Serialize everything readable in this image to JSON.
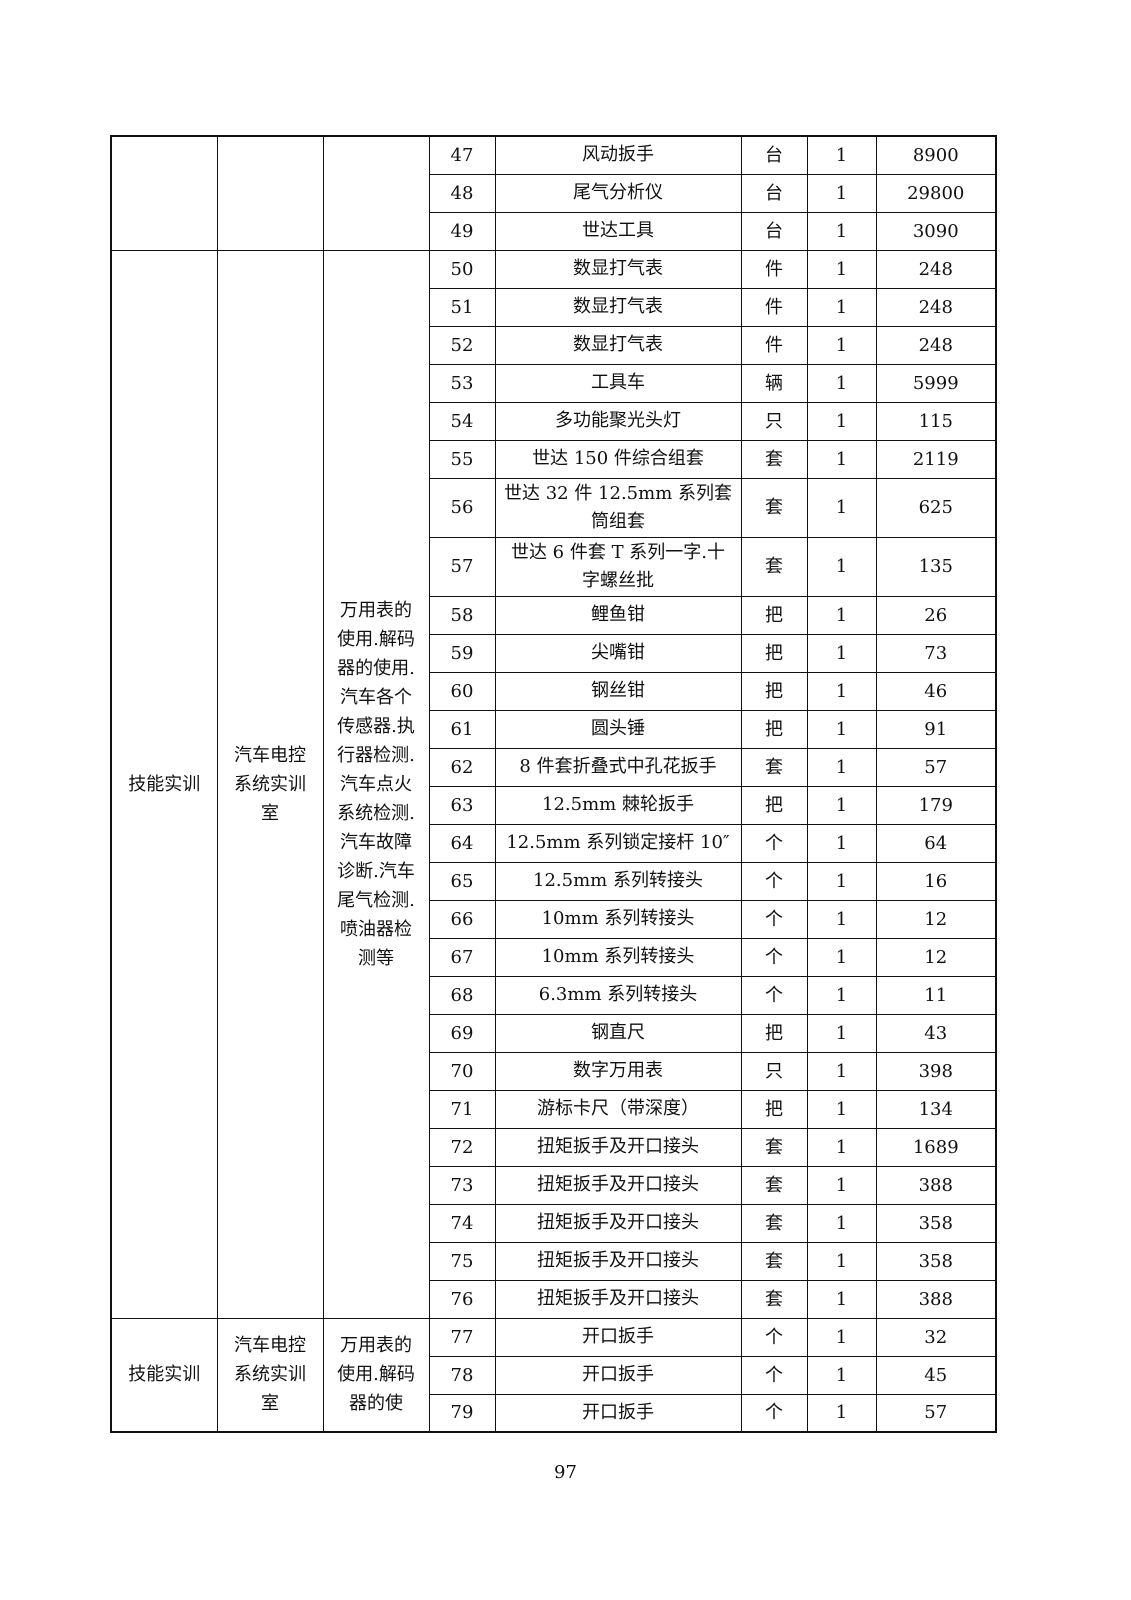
{
  "page_number": "97",
  "groups": [
    {
      "category": "",
      "room": "",
      "content": "",
      "rows": [
        {
          "no": "47",
          "name": "风动扳手",
          "unit": "台",
          "qty": "1",
          "price": "8900"
        },
        {
          "no": "48",
          "name": "尾气分析仪",
          "unit": "台",
          "qty": "1",
          "price": "29800"
        },
        {
          "no": "49",
          "name": "世达工具",
          "unit": "台",
          "qty": "1",
          "price": "3090"
        }
      ]
    },
    {
      "category": "技能实训",
      "room": "汽车电控系统实训室",
      "content": "万用表的使用.解码器的使用.汽车各个传感器.执行器检测.汽车点火系统检测.汽车故障诊断.汽车尾气检测.喷油器检测等",
      "rows": [
        {
          "no": "50",
          "name": "数显打气表",
          "unit": "件",
          "qty": "1",
          "price": "248"
        },
        {
          "no": "51",
          "name": "数显打气表",
          "unit": "件",
          "qty": "1",
          "price": "248"
        },
        {
          "no": "52",
          "name": "数显打气表",
          "unit": "件",
          "qty": "1",
          "price": "248"
        },
        {
          "no": "53",
          "name": "工具车",
          "unit": "辆",
          "qty": "1",
          "price": "5999"
        },
        {
          "no": "54",
          "name": "多功能聚光头灯",
          "unit": "只",
          "qty": "1",
          "price": "115"
        },
        {
          "no": "55",
          "name": "世达 150 件综合组套",
          "unit": "套",
          "qty": "1",
          "price": "2119"
        },
        {
          "no": "56",
          "name": "世达 32 件 12.5mm 系列套筒组套",
          "unit": "套",
          "qty": "1",
          "price": "625"
        },
        {
          "no": "57",
          "name": "世达 6 件套 T 系列一字.十字螺丝批",
          "unit": "套",
          "qty": "1",
          "price": "135"
        },
        {
          "no": "58",
          "name": "鲤鱼钳",
          "unit": "把",
          "qty": "1",
          "price": "26"
        },
        {
          "no": "59",
          "name": "尖嘴钳",
          "unit": "把",
          "qty": "1",
          "price": "73"
        },
        {
          "no": "60",
          "name": "钢丝钳",
          "unit": "把",
          "qty": "1",
          "price": "46"
        },
        {
          "no": "61",
          "name": "圆头锤",
          "unit": "把",
          "qty": "1",
          "price": "91"
        },
        {
          "no": "62",
          "name": "8 件套折叠式中孔花扳手",
          "unit": "套",
          "qty": "1",
          "price": "57"
        },
        {
          "no": "63",
          "name": "12.5mm 棘轮扳手",
          "unit": "把",
          "qty": "1",
          "price": "179"
        },
        {
          "no": "64",
          "name": "12.5mm 系列锁定接杆 10″",
          "unit": "个",
          "qty": "1",
          "price": "64"
        },
        {
          "no": "65",
          "name": "12.5mm 系列转接头",
          "unit": "个",
          "qty": "1",
          "price": "16"
        },
        {
          "no": "66",
          "name": "10mm 系列转接头",
          "unit": "个",
          "qty": "1",
          "price": "12"
        },
        {
          "no": "67",
          "name": "10mm 系列转接头",
          "unit": "个",
          "qty": "1",
          "price": "12"
        },
        {
          "no": "68",
          "name": "6.3mm 系列转接头",
          "unit": "个",
          "qty": "1",
          "price": "11"
        },
        {
          "no": "69",
          "name": "钢直尺",
          "unit": "把",
          "qty": "1",
          "price": "43"
        },
        {
          "no": "70",
          "name": "数字万用表",
          "unit": "只",
          "qty": "1",
          "price": "398"
        },
        {
          "no": "71",
          "name": "游标卡尺（带深度）",
          "unit": "把",
          "qty": "1",
          "price": "134"
        },
        {
          "no": "72",
          "name": "扭矩扳手及开口接头",
          "unit": "套",
          "qty": "1",
          "price": "1689"
        },
        {
          "no": "73",
          "name": "扭矩扳手及开口接头",
          "unit": "套",
          "qty": "1",
          "price": "388"
        },
        {
          "no": "74",
          "name": "扭矩扳手及开口接头",
          "unit": "套",
          "qty": "1",
          "price": "358"
        },
        {
          "no": "75",
          "name": "扭矩扳手及开口接头",
          "unit": "套",
          "qty": "1",
          "price": "358"
        },
        {
          "no": "76",
          "name": "扭矩扳手及开口接头",
          "unit": "套",
          "qty": "1",
          "price": "388"
        }
      ]
    },
    {
      "category": "技能实训",
      "room": "汽车电控系统实训室",
      "content": "万用表的使用.解码器的使",
      "rows": [
        {
          "no": "77",
          "name": "开口扳手",
          "unit": "个",
          "qty": "1",
          "price": "32"
        },
        {
          "no": "78",
          "name": "开口扳手",
          "unit": "个",
          "qty": "1",
          "price": "45"
        },
        {
          "no": "79",
          "name": "开口扳手",
          "unit": "个",
          "qty": "1",
          "price": "57"
        }
      ]
    }
  ]
}
